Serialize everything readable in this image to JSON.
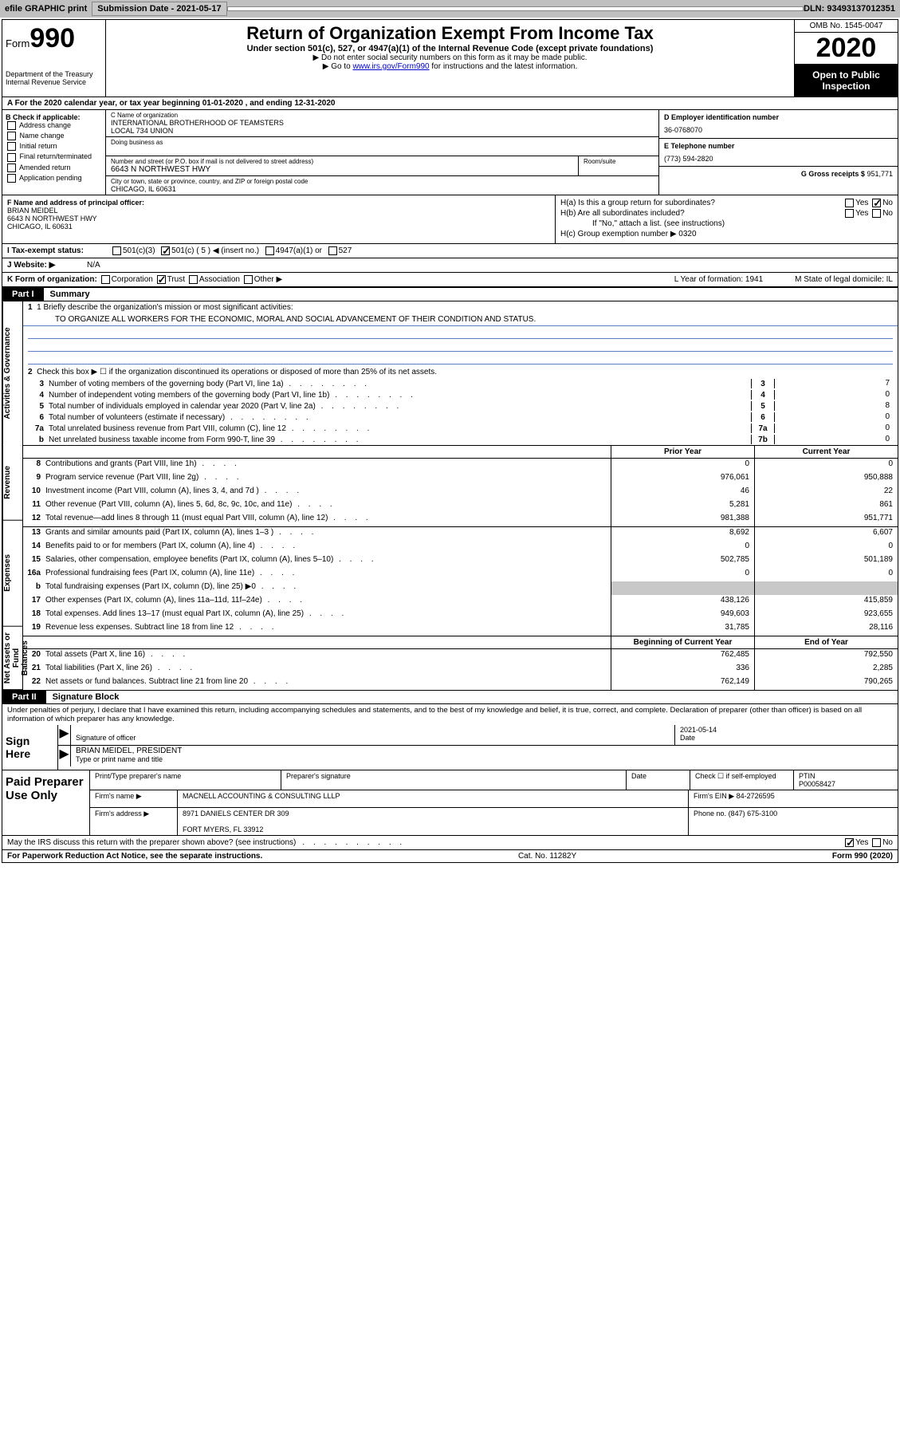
{
  "topbar": {
    "efile": "efile GRAPHIC print",
    "sub_label": "Submission Date - 2021-05-17",
    "dln": "DLN: 93493137012351"
  },
  "header": {
    "form_word": "Form",
    "form_num": "990",
    "dept": "Department of the Treasury\nInternal Revenue Service",
    "title": "Return of Organization Exempt From Income Tax",
    "sub": "Under section 501(c), 527, or 4947(a)(1) of the Internal Revenue Code (except private foundations)",
    "note1": "▶ Do not enter social security numbers on this form as it may be made public.",
    "note2_pre": "▶ Go to ",
    "note2_link": "www.irs.gov/Form990",
    "note2_post": " for instructions and the latest information.",
    "omb": "OMB No. 1545-0047",
    "year": "2020",
    "otp": "Open to Public Inspection"
  },
  "row_a": "A   For the 2020 calendar year, or tax year beginning 01-01-2020    , and ending 12-31-2020",
  "box_b": {
    "label": "B Check if applicable:",
    "opts": [
      "Address change",
      "Name change",
      "Initial return",
      "Final return/terminated",
      "Amended return",
      "Application pending"
    ]
  },
  "box_c": {
    "name_lbl": "C Name of organization",
    "name": "INTERNATIONAL BROTHERHOOD OF TEAMSTERS\nLOCAL 734 UNION",
    "dba_lbl": "Doing business as",
    "addr_lbl": "Number and street (or P.O. box if mail is not delivered to street address)",
    "addr": "6643 N NORTHWEST HWY",
    "room_lbl": "Room/suite",
    "city_lbl": "City or town, state or province, country, and ZIP or foreign postal code",
    "city": "CHICAGO, IL  60631"
  },
  "box_d": {
    "lbl": "D Employer identification number",
    "val": "36-0768070"
  },
  "box_e": {
    "lbl": "E Telephone number",
    "val": "(773) 594-2820"
  },
  "box_g": {
    "lbl": "G Gross receipts $",
    "val": "951,771"
  },
  "box_f": {
    "lbl": "F Name and address of principal officer:",
    "name": "BRIAN MEIDEL",
    "addr": "6643 N NORTHWEST HWY\nCHICAGO, IL  60631"
  },
  "box_h": {
    "ha": "H(a)  Is this a group return for subordinates?",
    "hb": "H(b)  Are all subordinates included?",
    "hb_note": "If \"No,\" attach a list. (see instructions)",
    "hc": "H(c)  Group exemption number ▶   0320"
  },
  "row_i": {
    "lbl": "I    Tax-exempt status:",
    "o1": "501(c)(3)",
    "o2": "501(c) ( 5 ) ◀ (insert no.)",
    "o3": "4947(a)(1) or",
    "o4": "527"
  },
  "row_j": {
    "lbl": "J    Website: ▶",
    "val": "N/A"
  },
  "row_k": {
    "lbl": "K Form of organization:",
    "o1": "Corporation",
    "o2": "Trust",
    "o3": "Association",
    "o4": "Other ▶",
    "l": "L Year of formation: 1941",
    "m": "M State of legal domicile: IL"
  },
  "p1": {
    "tab": "Part I",
    "title": "Summary",
    "q1_lbl": "1   Briefly describe the organization's mission or most significant activities:",
    "q1_val": "TO ORGANIZE ALL WORKERS FOR THE ECONOMIC, MORAL AND SOCIAL ADVANCEMENT OF THEIR CONDITION AND STATUS.",
    "q2": "Check this box ▶ ☐  if the organization discontinued its operations or disposed of more than 25% of its net assets.",
    "side_ag": "Activities & Governance",
    "side_rev": "Revenue",
    "side_exp": "Expenses",
    "side_na": "Net Assets or Fund Balances",
    "lines_single": [
      {
        "n": "3",
        "d": "Number of voting members of the governing body (Part VI, line 1a)",
        "box": "3",
        "v": "7"
      },
      {
        "n": "4",
        "d": "Number of independent voting members of the governing body (Part VI, line 1b)",
        "box": "4",
        "v": "0"
      },
      {
        "n": "5",
        "d": "Total number of individuals employed in calendar year 2020 (Part V, line 2a)",
        "box": "5",
        "v": "8"
      },
      {
        "n": "6",
        "d": "Total number of volunteers (estimate if necessary)",
        "box": "6",
        "v": "0"
      },
      {
        "n": "7a",
        "d": "Total unrelated business revenue from Part VIII, column (C), line 12",
        "box": "7a",
        "v": "0"
      },
      {
        "n": "b",
        "d": "Net unrelated business taxable income from Form 990-T, line 39",
        "box": "7b",
        "v": "0"
      }
    ],
    "col_py": "Prior Year",
    "col_cy": "Current Year",
    "rev": [
      {
        "n": "8",
        "d": "Contributions and grants (Part VIII, line 1h)",
        "c1": "0",
        "c2": "0"
      },
      {
        "n": "9",
        "d": "Program service revenue (Part VIII, line 2g)",
        "c1": "976,061",
        "c2": "950,888"
      },
      {
        "n": "10",
        "d": "Investment income (Part VIII, column (A), lines 3, 4, and 7d )",
        "c1": "46",
        "c2": "22"
      },
      {
        "n": "11",
        "d": "Other revenue (Part VIII, column (A), lines 5, 6d, 8c, 9c, 10c, and 11e)",
        "c1": "5,281",
        "c2": "861"
      },
      {
        "n": "12",
        "d": "Total revenue—add lines 8 through 11 (must equal Part VIII, column (A), line 12)",
        "c1": "981,388",
        "c2": "951,771"
      }
    ],
    "exp": [
      {
        "n": "13",
        "d": "Grants and similar amounts paid (Part IX, column (A), lines 1–3 )",
        "c1": "8,692",
        "c2": "6,607"
      },
      {
        "n": "14",
        "d": "Benefits paid to or for members (Part IX, column (A), line 4)",
        "c1": "0",
        "c2": "0"
      },
      {
        "n": "15",
        "d": "Salaries, other compensation, employee benefits (Part IX, column (A), lines 5–10)",
        "c1": "502,785",
        "c2": "501,189"
      },
      {
        "n": "16a",
        "d": "Professional fundraising fees (Part IX, column (A), line 11e)",
        "c1": "0",
        "c2": "0"
      },
      {
        "n": "b",
        "d": "Total fundraising expenses (Part IX, column (D), line 25) ▶0",
        "c1": "",
        "c2": "",
        "shade": true
      },
      {
        "n": "17",
        "d": "Other expenses (Part IX, column (A), lines 11a–11d, 11f–24e)",
        "c1": "438,126",
        "c2": "415,859"
      },
      {
        "n": "18",
        "d": "Total expenses. Add lines 13–17 (must equal Part IX, column (A), line 25)",
        "c1": "949,603",
        "c2": "923,655"
      },
      {
        "n": "19",
        "d": "Revenue less expenses. Subtract line 18 from line 12",
        "c1": "31,785",
        "c2": "28,116"
      }
    ],
    "col_boy": "Beginning of Current Year",
    "col_eoy": "End of Year",
    "na": [
      {
        "n": "20",
        "d": "Total assets (Part X, line 16)",
        "c1": "762,485",
        "c2": "792,550"
      },
      {
        "n": "21",
        "d": "Total liabilities (Part X, line 26)",
        "c1": "336",
        "c2": "2,285"
      },
      {
        "n": "22",
        "d": "Net assets or fund balances. Subtract line 21 from line 20",
        "c1": "762,149",
        "c2": "790,265"
      }
    ]
  },
  "p2": {
    "tab": "Part II",
    "title": "Signature Block",
    "decl": "Under penalties of perjury, I declare that I have examined this return, including accompanying schedules and statements, and to the best of my knowledge and belief, it is true, correct, and complete. Declaration of preparer (other than officer) is based on all information of which preparer has any knowledge."
  },
  "sign": {
    "here": "Sign Here",
    "sig_lbl": "Signature of officer",
    "date_lbl": "Date",
    "date_val": "2021-05-14",
    "name": "BRIAN MEIDEL, PRESIDENT",
    "name_lbl": "Type or print name and title"
  },
  "prep": {
    "left": "Paid Preparer Use Only",
    "r1": {
      "c1_lbl": "Print/Type preparer's name",
      "c2_lbl": "Preparer's signature",
      "c3_lbl": "Date",
      "c4_lbl": "Check ☐ if self-employed",
      "c5_lbl": "PTIN",
      "c5_val": "P00058427"
    },
    "r2": {
      "lbl": "Firm's name    ▶",
      "val": "MACNELL ACCOUNTING & CONSULTING LLLP",
      "ein_lbl": "Firm's EIN ▶",
      "ein": "84-2726595"
    },
    "r3": {
      "lbl": "Firm's address ▶",
      "val": "8971 DANIELS CENTER DR 309",
      "ph_lbl": "Phone no.",
      "ph": "(847) 675-3100"
    },
    "r3b": "FORT MYERS, FL  33912"
  },
  "discuss": "May the IRS discuss this return with the preparer shown above? (see instructions)",
  "footer": {
    "l": "For Paperwork Reduction Act Notice, see the separate instructions.",
    "m": "Cat. No. 11282Y",
    "r": "Form 990 (2020)"
  }
}
